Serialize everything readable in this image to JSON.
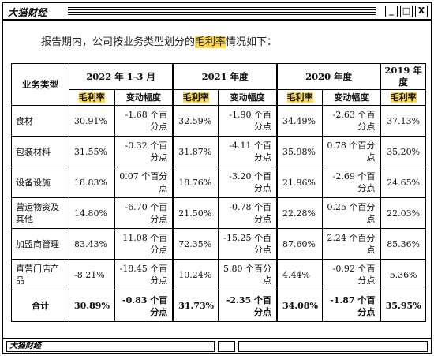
{
  "window": {
    "title": "大猫财经",
    "buttons": {
      "minimize": "_",
      "maximize": "□",
      "close": "X"
    },
    "status_title": "大猫财经"
  },
  "intro": {
    "before": "报告期内，公司按业务类型划分的",
    "highlight": "毛利率",
    "after": "情况如下："
  },
  "table": {
    "category_header": "业务类型",
    "periods": [
      "2022 年 1-3 月",
      "2021 年度",
      "2020 年度",
      "2019 年度"
    ],
    "sub_headers": {
      "margin": "毛利率",
      "change": "变动幅度"
    },
    "rows": [
      {
        "name": "食材",
        "values": [
          "30.91%",
          "-1.68 个百分点",
          "32.59%",
          "-1.90 个百分点",
          "34.49%",
          "-2.63 个百分点",
          "37.13%"
        ]
      },
      {
        "name": "包装材料",
        "values": [
          "31.55%",
          "-0.32 个百分点",
          "31.87%",
          "-4.11 个百分点",
          "35.98%",
          "0.78 个百分点",
          "35.20%"
        ]
      },
      {
        "name": "设备设施",
        "values": [
          "18.83%",
          "0.07 个百分点",
          "18.76%",
          "-3.20 个百分点",
          "21.96%",
          "-2.69 个百分点",
          "24.65%"
        ]
      },
      {
        "name": "营运物资及其他",
        "values": [
          "14.80%",
          "-6.70 个百分点",
          "21.50%",
          "-0.78 个百分点",
          "22.28%",
          "0.25 个百分点",
          "22.03%"
        ]
      },
      {
        "name": "加盟商管理",
        "values": [
          "83.43%",
          "11.08 个百分点",
          "72.35%",
          "-15.25 个百分点",
          "87.60%",
          "2.24 个百分点",
          "85.36%"
        ]
      },
      {
        "name": "直营门店产品",
        "values": [
          "-8.21%",
          "-18.45 个百分点",
          "10.24%",
          "5.80 个百分点",
          "4.44%",
          "-0.92 个百分点",
          "5.36%"
        ]
      }
    ],
    "total": {
      "name": "合计",
      "values": [
        "30.89%",
        "-0.83 个百分点",
        "31.73%",
        "-2.35 个百分点",
        "34.08%",
        "-1.87 个百分点",
        "35.95%"
      ]
    }
  }
}
